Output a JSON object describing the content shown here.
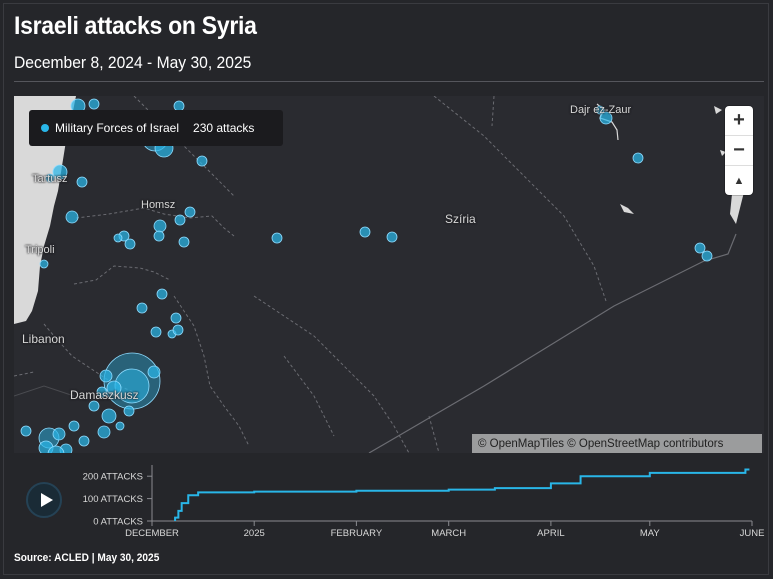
{
  "header": {
    "title": "Israeli attacks on Syria",
    "subtitle": "December 8, 2024 - May 30, 2025"
  },
  "legend": {
    "series_name": "Military Forces of Israel",
    "count": "230 attacks",
    "dot_color": "#29b6e8"
  },
  "map": {
    "labels": {
      "tartus": "Tartusz",
      "homs": "Homsz",
      "tripoli": "Tripoli",
      "lebanon": "Libanon",
      "damascus": "Damaszkusz",
      "syria": "Szíria",
      "deir_ez_zor": "Dajr ez-Zaur"
    },
    "zoom": {
      "in": "+",
      "out": "−",
      "reset": "▲"
    },
    "attribution": "© OpenMapTiles © OpenStreetMap contributors"
  },
  "timeline": {
    "y_ticks": [
      "200 ATTACKS",
      "100 ATTACKS",
      "0 ATTACKS"
    ],
    "x_ticks": [
      "DECEMBER",
      "2025",
      "FEBRUARY",
      "MARCH",
      "APRIL",
      "MAY",
      "JUNE"
    ],
    "play_icon": "play-icon",
    "line_color": "#29b6e8"
  },
  "chart_data": {
    "type": "line",
    "x": [
      "2024-12-08",
      "2024-12-09",
      "2024-12-10",
      "2024-12-12",
      "2024-12-15",
      "2025-01-01",
      "2025-02-01",
      "2025-03-01",
      "2025-03-15",
      "2025-04-01",
      "2025-04-10",
      "2025-05-01",
      "2025-05-30"
    ],
    "values": [
      15,
      45,
      80,
      115,
      128,
      131,
      135,
      140,
      147,
      168,
      200,
      215,
      230
    ],
    "ylim": [
      0,
      250
    ]
  },
  "footer": {
    "source": "Source: ACLED | May 30, 2025"
  }
}
